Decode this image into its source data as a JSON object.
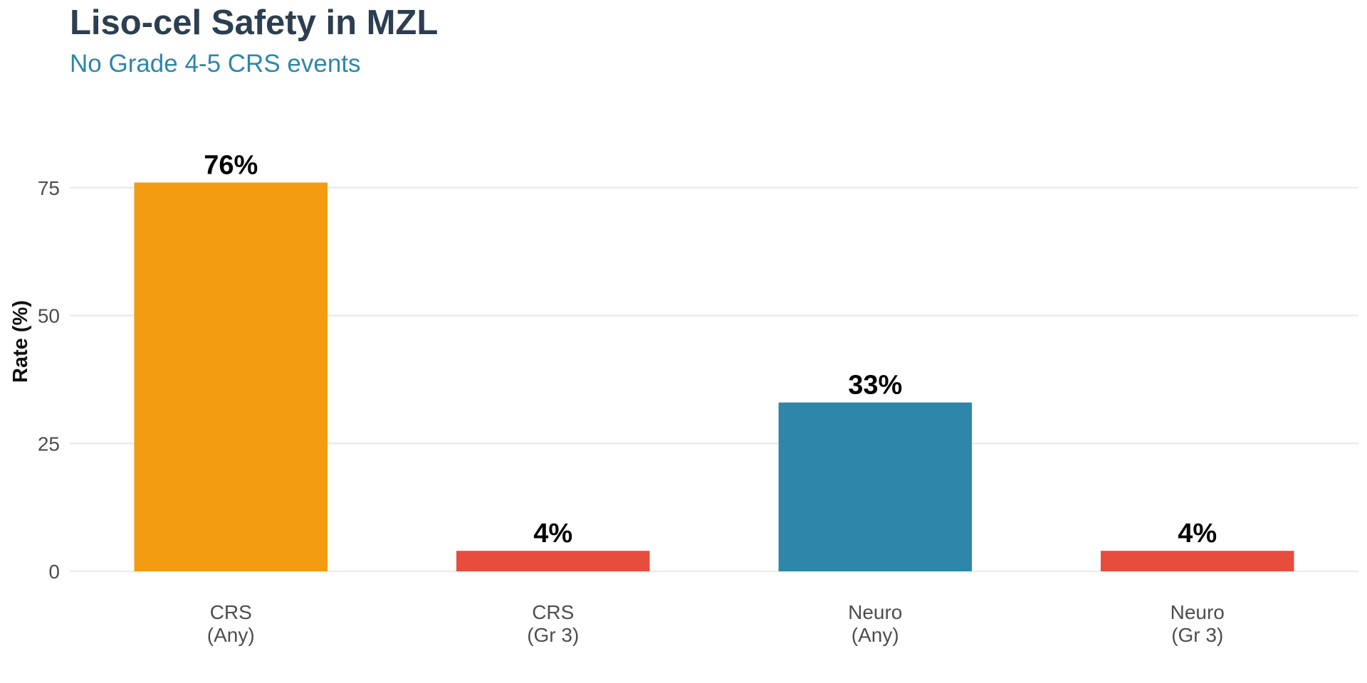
{
  "chart_data": {
    "type": "bar",
    "title": "Liso-cel Safety in MZL",
    "subtitle": "No Grade 4-5 CRS events",
    "xlabel": "",
    "ylabel": "Rate (%)",
    "ylim": [
      0,
      90
    ],
    "yticks": [
      0,
      25,
      50,
      75
    ],
    "grid": true,
    "legend": "none",
    "categories": [
      [
        "CRS",
        "(Any)"
      ],
      [
        "CRS",
        "(Gr 3)"
      ],
      [
        "Neuro",
        "(Any)"
      ],
      [
        "Neuro",
        "(Gr 3)"
      ]
    ],
    "values": [
      76,
      4,
      33,
      4
    ],
    "data_labels": [
      "76%",
      "4%",
      "33%",
      "4%"
    ],
    "colors": [
      "#F39C12",
      "#E74C3C",
      "#2E86AB",
      "#E74C3C"
    ]
  },
  "style": {
    "title_color": "#2C3E50",
    "subtitle_color": "#2E86AB",
    "grid_color": "#EBEBEB"
  }
}
